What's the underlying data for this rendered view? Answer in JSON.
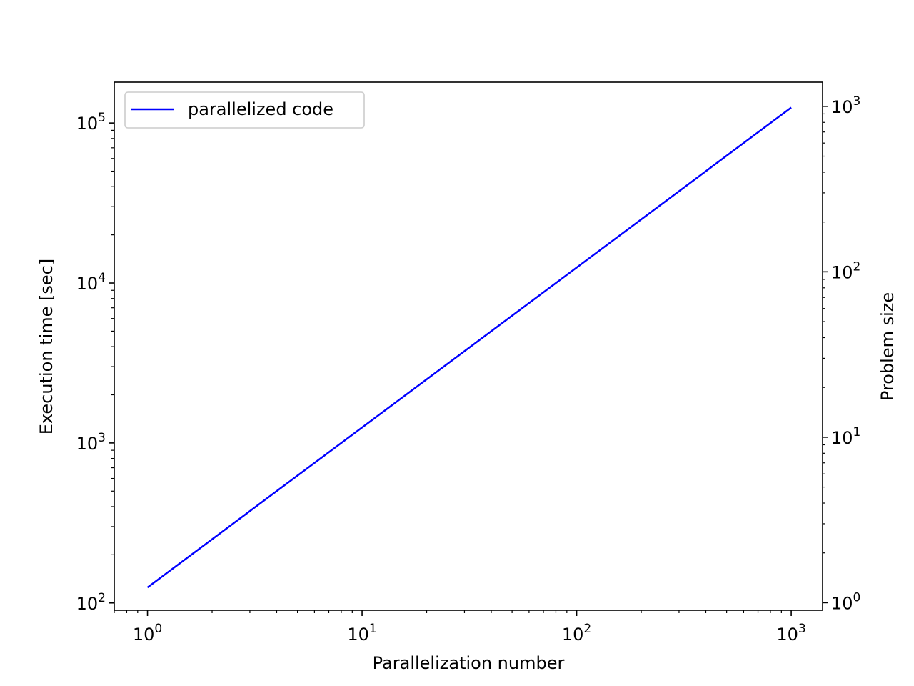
{
  "chart_data": {
    "type": "line",
    "xlabel": "Parallelization number",
    "ylabel": "Execution time [sec]",
    "y2label": "Problem size",
    "xscale": "log",
    "yscale": "log",
    "y2scale": "log",
    "xlim": [
      0.7,
      1400
    ],
    "ylim": [
      90,
      180000
    ],
    "y2lim": [
      0.9,
      1400
    ],
    "grid": false,
    "legend_position": "top-left",
    "x_ticks": [
      {
        "base": "10",
        "exp": "0",
        "value": 1
      },
      {
        "base": "10",
        "exp": "1",
        "value": 10
      },
      {
        "base": "10",
        "exp": "2",
        "value": 100
      },
      {
        "base": "10",
        "exp": "3",
        "value": 1000
      }
    ],
    "y_ticks": [
      {
        "base": "10",
        "exp": "2",
        "value": 100
      },
      {
        "base": "10",
        "exp": "3",
        "value": 1000
      },
      {
        "base": "10",
        "exp": "4",
        "value": 10000
      },
      {
        "base": "10",
        "exp": "5",
        "value": 100000
      }
    ],
    "y2_ticks": [
      {
        "base": "10",
        "exp": "0",
        "value": 1
      },
      {
        "base": "10",
        "exp": "1",
        "value": 10
      },
      {
        "base": "10",
        "exp": "2",
        "value": 100
      },
      {
        "base": "10",
        "exp": "3",
        "value": 1000
      }
    ],
    "series": [
      {
        "name": "parallelized code",
        "color": "#0000ff",
        "x": [
          1,
          1000
        ],
        "y": [
          125,
          125000
        ]
      }
    ]
  }
}
